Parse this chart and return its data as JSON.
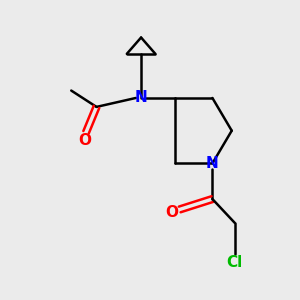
{
  "bg_color": "#ebebeb",
  "bond_color": "#000000",
  "N_color": "#0000ff",
  "O_color": "#ff0000",
  "Cl_color": "#00bb00",
  "line_width": 1.8,
  "font_size": 11,
  "fig_size": [
    3.0,
    3.0
  ],
  "dpi": 100,
  "xlim": [
    0,
    10
  ],
  "ylim": [
    0,
    10
  ]
}
